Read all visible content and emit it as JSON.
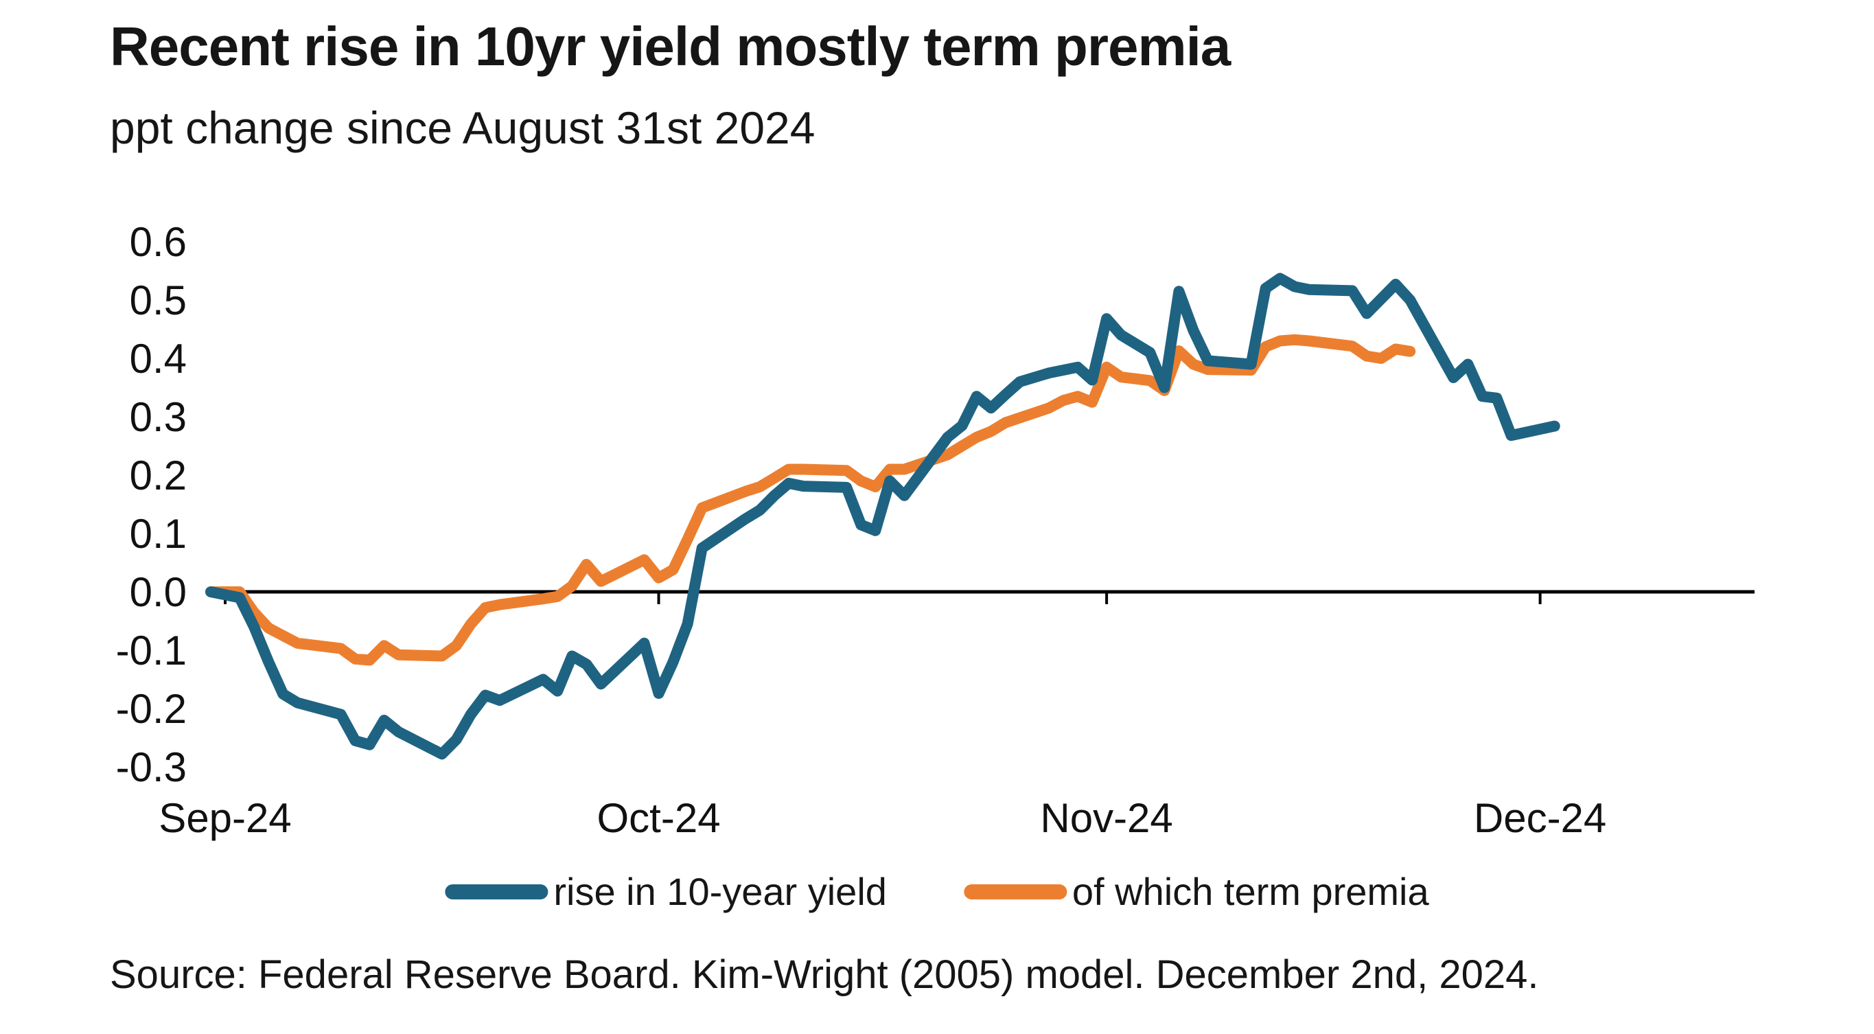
{
  "title": "Recent rise in 10yr yield mostly term premia",
  "subtitle": "ppt change since August 31st 2024",
  "source": "Source: Federal Reserve Board. Kim-Wright (2005) model. December 2nd, 2024.",
  "colors": {
    "yield_line": "#1F6382",
    "premia_line": "#EC7F2F",
    "axis": "#000000",
    "text": "#161616"
  },
  "legend": [
    {
      "label": "rise in 10-year yield",
      "color": "#1F6382"
    },
    {
      "label": "of which term premia",
      "color": "#EC7F2F"
    }
  ],
  "chart_data": {
    "type": "line",
    "title": "Recent rise in 10yr yield mostly term premia",
    "subtitle": "ppt change since August 31st 2024",
    "xlabel": "",
    "ylabel": "ppt change since August 31st 2024",
    "x_unit": "days since 2024-08-31",
    "x_ticks": [
      {
        "day": 1,
        "label": "Sep-24"
      },
      {
        "day": 31,
        "label": "Oct-24"
      },
      {
        "day": 62,
        "label": "Nov-24"
      },
      {
        "day": 92,
        "label": "Dec-24"
      }
    ],
    "y_ticks": [
      "0.6",
      "0.5",
      "0.4",
      "0.3",
      "0.2",
      "0.1",
      "0.0",
      "-0.1",
      "-0.2",
      "-0.3"
    ],
    "ylim": [
      -0.3,
      0.6
    ],
    "xlim_days": [
      0,
      107
    ],
    "grid": false,
    "legend_position": "bottom-center",
    "series": [
      {
        "name": "of which term premia",
        "color": "#EC7F2F",
        "points": [
          [
            0,
            0
          ],
          [
            2,
            0
          ],
          [
            3,
            -0.035
          ],
          [
            4,
            -0.062
          ],
          [
            5,
            -0.075
          ],
          [
            6,
            -0.088
          ],
          [
            9,
            -0.097
          ],
          [
            10,
            -0.115
          ],
          [
            11,
            -0.117
          ],
          [
            12,
            -0.092
          ],
          [
            13,
            -0.108
          ],
          [
            16,
            -0.11
          ],
          [
            17,
            -0.092
          ],
          [
            18,
            -0.055
          ],
          [
            19,
            -0.027
          ],
          [
            20,
            -0.022
          ],
          [
            23,
            -0.012
          ],
          [
            24,
            -0.008
          ],
          [
            25,
            0.01
          ],
          [
            26,
            0.047
          ],
          [
            27,
            0.018
          ],
          [
            30,
            0.055
          ],
          [
            31,
            0.024
          ],
          [
            32,
            0.038
          ],
          [
            33,
            0.09
          ],
          [
            34,
            0.144
          ],
          [
            37,
            0.172
          ],
          [
            38,
            0.18
          ],
          [
            39,
            0.195
          ],
          [
            40,
            0.21
          ],
          [
            41,
            0.21
          ],
          [
            44,
            0.208
          ],
          [
            45,
            0.19
          ],
          [
            46,
            0.18
          ],
          [
            47,
            0.21
          ],
          [
            48,
            0.21
          ],
          [
            51,
            0.235
          ],
          [
            52,
            0.25
          ],
          [
            53,
            0.265
          ],
          [
            54,
            0.275
          ],
          [
            55,
            0.29
          ],
          [
            58,
            0.315
          ],
          [
            59,
            0.328
          ],
          [
            60,
            0.335
          ],
          [
            61,
            0.325
          ],
          [
            62,
            0.385
          ],
          [
            63,
            0.368
          ],
          [
            65,
            0.362
          ],
          [
            66,
            0.345
          ],
          [
            67,
            0.413
          ],
          [
            68,
            0.39
          ],
          [
            69,
            0.381
          ],
          [
            72,
            0.38
          ],
          [
            73,
            0.42
          ],
          [
            74,
            0.43
          ],
          [
            75,
            0.432
          ],
          [
            76,
            0.43
          ],
          [
            79,
            0.421
          ],
          [
            80,
            0.404
          ],
          [
            81,
            0.4
          ],
          [
            82,
            0.416
          ],
          [
            83,
            0.412
          ]
        ]
      },
      {
        "name": "rise in 10-year yield",
        "color": "#1F6382",
        "points": [
          [
            0,
            0
          ],
          [
            2,
            -0.01
          ],
          [
            3,
            -0.06
          ],
          [
            4,
            -0.12
          ],
          [
            5,
            -0.175
          ],
          [
            6,
            -0.19
          ],
          [
            9,
            -0.21
          ],
          [
            10,
            -0.255
          ],
          [
            11,
            -0.262
          ],
          [
            12,
            -0.22
          ],
          [
            13,
            -0.24
          ],
          [
            16,
            -0.278
          ],
          [
            17,
            -0.253
          ],
          [
            18,
            -0.21
          ],
          [
            19,
            -0.177
          ],
          [
            20,
            -0.186
          ],
          [
            23,
            -0.15
          ],
          [
            24,
            -0.17
          ],
          [
            25,
            -0.11
          ],
          [
            26,
            -0.124
          ],
          [
            27,
            -0.158
          ],
          [
            30,
            -0.088
          ],
          [
            31,
            -0.174
          ],
          [
            32,
            -0.12
          ],
          [
            33,
            -0.055
          ],
          [
            34,
            0.075
          ],
          [
            37,
            0.125
          ],
          [
            38,
            0.14
          ],
          [
            39,
            0.165
          ],
          [
            40,
            0.186
          ],
          [
            41,
            0.181
          ],
          [
            44,
            0.179
          ],
          [
            45,
            0.115
          ],
          [
            46,
            0.105
          ],
          [
            47,
            0.19
          ],
          [
            48,
            0.165
          ],
          [
            51,
            0.265
          ],
          [
            52,
            0.285
          ],
          [
            53,
            0.335
          ],
          [
            54,
            0.315
          ],
          [
            55,
            0.338
          ],
          [
            56,
            0.36
          ],
          [
            58,
            0.375
          ],
          [
            60,
            0.385
          ],
          [
            61,
            0.363
          ],
          [
            62,
            0.468
          ],
          [
            63,
            0.44
          ],
          [
            65,
            0.41
          ],
          [
            66,
            0.35
          ],
          [
            67,
            0.515
          ],
          [
            68,
            0.448
          ],
          [
            69,
            0.396
          ],
          [
            72,
            0.39
          ],
          [
            73,
            0.52
          ],
          [
            74,
            0.537
          ],
          [
            75,
            0.523
          ],
          [
            76,
            0.518
          ],
          [
            79,
            0.516
          ],
          [
            80,
            0.477
          ],
          [
            82,
            0.527
          ],
          [
            83,
            0.5
          ],
          [
            86,
            0.367
          ],
          [
            87,
            0.39
          ],
          [
            88,
            0.335
          ],
          [
            89,
            0.332
          ],
          [
            90,
            0.268
          ],
          [
            93,
            0.284
          ]
        ]
      }
    ]
  }
}
